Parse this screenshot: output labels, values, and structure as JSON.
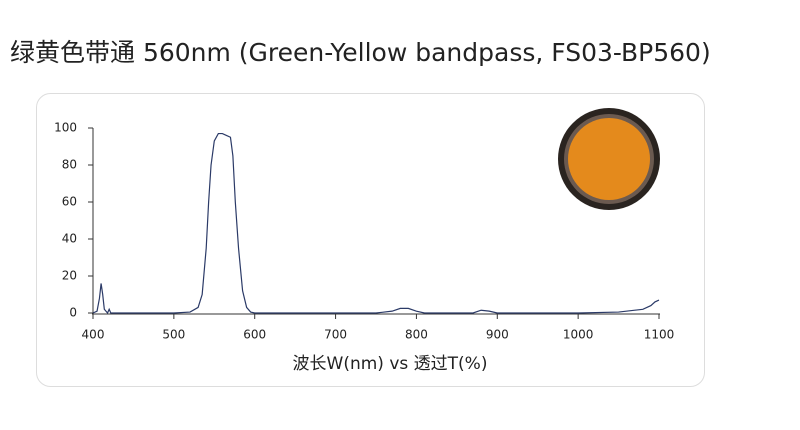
{
  "chart_data": {
    "type": "line",
    "title": "绿黄色带通 560nm (Green-Yellow bandpass, FS03-BP560)",
    "x_label": "波长W(nm) vs 透过T(%)",
    "x": [
      400,
      405,
      408,
      410,
      412,
      414,
      418,
      420,
      422,
      450,
      500,
      520,
      530,
      535,
      540,
      543,
      546,
      550,
      555,
      560,
      565,
      570,
      573,
      576,
      580,
      585,
      590,
      595,
      600,
      700,
      750,
      770,
      780,
      790,
      800,
      810,
      870,
      880,
      890,
      900,
      1000,
      1050,
      1080,
      1090,
      1095,
      1100
    ],
    "series": [
      {
        "name": "透过T",
        "color": "#2b3a67",
        "values": [
          0,
          1,
          8,
          16,
          10,
          2,
          0,
          2,
          0,
          0,
          0,
          0.5,
          3,
          10,
          35,
          60,
          80,
          93,
          97,
          97,
          96,
          95,
          85,
          60,
          35,
          12,
          3,
          0.5,
          0,
          0,
          0,
          1,
          2.5,
          2.5,
          1,
          0,
          0,
          1.5,
          1,
          0,
          0,
          0.5,
          2,
          4,
          6,
          7
        ]
      }
    ],
    "xlim": [
      400,
      1100
    ],
    "ylim": [
      0,
      100
    ],
    "xticks": [
      400,
      500,
      600,
      700,
      800,
      900,
      1000,
      1100
    ],
    "yticks": [
      0,
      20,
      40,
      60,
      80,
      100
    ],
    "grid": false
  }
}
